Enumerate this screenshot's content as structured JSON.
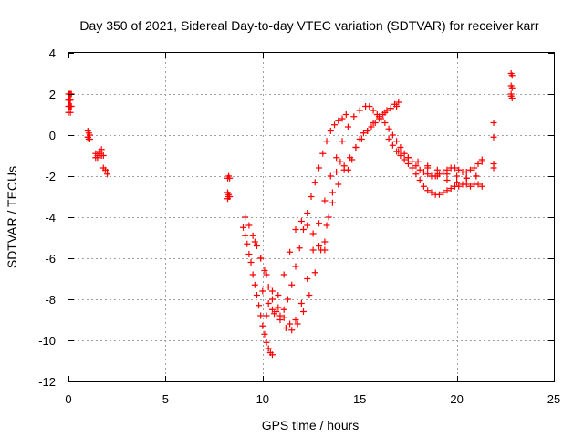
{
  "chart_data": {
    "type": "scatter",
    "title": "Day 350 of 2021, Sidereal Day-to-day VTEC variation (SDTVAR) for receiver karr",
    "xlabel": "GPS time / hours",
    "ylabel": "SDTVAR / TECUs",
    "xlim": [
      0,
      25
    ],
    "ylim": [
      -12,
      4
    ],
    "xticks": [
      0,
      5,
      10,
      15,
      20,
      25
    ],
    "yticks": [
      -12,
      -10,
      -8,
      -6,
      -4,
      -2,
      0,
      2,
      4
    ],
    "grid": true,
    "marker": "plus",
    "color": "#ff0000",
    "series": [
      {
        "x": [
          0.0,
          0.05,
          0.1,
          0.15,
          0.0,
          0.05,
          0.1,
          0.0,
          0.05,
          0.1,
          0.15,
          0.0,
          0.1,
          1.0,
          1.05,
          1.1,
          1.0,
          1.05,
          1.1,
          1.0,
          1.4,
          1.5,
          1.6,
          1.4,
          1.5,
          1.6,
          1.7,
          1.7,
          1.8,
          1.8,
          1.9,
          2.0,
          2.0,
          8.2,
          8.25,
          8.3,
          8.2,
          8.25,
          8.3,
          8.2,
          8.25,
          9.0,
          9.1,
          9.2,
          9.3,
          9.4,
          9.5,
          9.6,
          9.7,
          9.8,
          9.9,
          10.0,
          10.1,
          10.2,
          10.3,
          10.4,
          10.5,
          9.1,
          9.3,
          9.5,
          9.7,
          9.9,
          10.1,
          10.3,
          10.5,
          10.7,
          10.9,
          11.1,
          11.3,
          11.5,
          11.7,
          11.9,
          12.1,
          12.3,
          12.5,
          12.7,
          12.9,
          13.1,
          13.3,
          13.5,
          13.7,
          13.9,
          14.1,
          14.3,
          9.6,
          9.9,
          10.2,
          10.5,
          10.8,
          11.1,
          11.4,
          11.7,
          12.0,
          12.3,
          12.6,
          12.9,
          13.2,
          13.5,
          13.8,
          14.1,
          14.4,
          14.7,
          15.0,
          15.3,
          10.0,
          10.3,
          10.6,
          10.9,
          11.2,
          11.5,
          11.8,
          12.1,
          12.4,
          12.7,
          13.0,
          13.3,
          13.6,
          13.9,
          14.2,
          14.5,
          14.8,
          15.1,
          15.4,
          15.7,
          16.0,
          16.3,
          16.6,
          16.9,
          10.2,
          10.5,
          10.8,
          11.1,
          11.4,
          11.7,
          12.0,
          12.3,
          12.6,
          12.9,
          13.2,
          13.2,
          13.4,
          13.6,
          13.8,
          14.0,
          14.2,
          14.4,
          14.6,
          14.8,
          15.0,
          15.2,
          15.4,
          15.6,
          15.8,
          16.0,
          16.2,
          16.4,
          16.6,
          16.8,
          17.0,
          15.5,
          15.7,
          15.9,
          16.1,
          16.3,
          16.5,
          16.7,
          16.9,
          17.1,
          17.3,
          17.5,
          17.7,
          17.9,
          18.1,
          18.3,
          18.5,
          18.7,
          18.9,
          19.1,
          19.3,
          19.5,
          19.7,
          19.9,
          20.1,
          20.3,
          20.5,
          20.7,
          20.9,
          21.1,
          21.3,
          16.5,
          16.7,
          16.9,
          17.1,
          17.3,
          17.5,
          17.7,
          17.9,
          18.1,
          18.3,
          18.5,
          18.7,
          18.9,
          19.1,
          19.3,
          19.5,
          19.7,
          19.9,
          20.1,
          20.3,
          20.5,
          20.7,
          20.9,
          21.1,
          21.3,
          17.0,
          17.5,
          18.0,
          18.5,
          19.0,
          19.5,
          20.0,
          20.5,
          21.0,
          18.5,
          19.0,
          19.5,
          20.0,
          20.5,
          21.0,
          21.3,
          21.9,
          21.9,
          21.9,
          21.9,
          22.8,
          22.85,
          22.8,
          22.85,
          22.8,
          22.85,
          22.8
        ],
        "y": [
          2.0,
          2.0,
          2.0,
          2.0,
          1.7,
          1.7,
          1.7,
          1.4,
          1.4,
          1.4,
          1.4,
          1.1,
          1.1,
          0.2,
          0.1,
          0.0,
          -0.1,
          -0.2,
          -0.2,
          -0.1,
          -0.9,
          -1.0,
          -0.8,
          -1.1,
          -1.1,
          -0.9,
          -1.0,
          -0.7,
          -1.0,
          -1.6,
          -1.7,
          -1.8,
          -1.9,
          -2.1,
          -2.0,
          -2.1,
          -2.8,
          -2.9,
          -3.0,
          -3.1,
          -3.0,
          -4.5,
          -4.9,
          -5.3,
          -5.8,
          -6.2,
          -6.8,
          -7.3,
          -7.8,
          -8.3,
          -8.8,
          -9.3,
          -9.7,
          -10.1,
          -10.4,
          -10.6,
          -10.7,
          -4.0,
          -4.4,
          -4.9,
          -5.4,
          -6.0,
          -6.6,
          -7.4,
          -8.0,
          -8.6,
          -8.8,
          -8.5,
          -8.0,
          -7.3,
          -6.4,
          -5.5,
          -4.6,
          -3.8,
          -3.0,
          -2.3,
          -1.6,
          -0.9,
          -0.3,
          0.2,
          0.5,
          0.7,
          0.8,
          1.0,
          -5.2,
          -6.0,
          -6.8,
          -7.6,
          -8.4,
          -8.9,
          -9.2,
          -9.0,
          -8.2,
          -7.0,
          -5.6,
          -4.3,
          -3.2,
          -2.0,
          -1.1,
          -0.3,
          0.4,
          0.9,
          1.2,
          1.4,
          -7.6,
          -8.2,
          -8.7,
          -9.0,
          -9.4,
          -9.5,
          -9.2,
          -8.6,
          -7.8,
          -6.7,
          -5.6,
          -4.4,
          -3.3,
          -2.4,
          -1.7,
          -1.1,
          -0.6,
          -0.2,
          0.2,
          0.6,
          0.9,
          1.1,
          1.3,
          1.4,
          -8.8,
          -8.5,
          -7.8,
          -6.8,
          -5.7,
          -4.6,
          -4.2,
          -4.4,
          -4.8,
          -5.4,
          -5.6,
          -5.2,
          -4.0,
          -2.8,
          -1.8,
          -1.3,
          -1.5,
          -1.7,
          -1.2,
          -0.6,
          -0.2,
          0.1,
          0.2,
          0.4,
          0.6,
          0.8,
          1.0,
          1.2,
          1.3,
          1.5,
          1.6,
          1.4,
          1.2,
          1.0,
          0.8,
          0.6,
          0.3,
          0.0,
          -0.3,
          -0.6,
          -0.9,
          -1.1,
          -1.3,
          -1.5,
          -1.7,
          -1.8,
          -1.9,
          -2.0,
          -2.0,
          -1.9,
          -1.8,
          -1.7,
          -1.6,
          -1.6,
          -1.7,
          -1.8,
          -1.8,
          -1.7,
          -1.6,
          -1.4,
          -1.2,
          -0.2,
          -0.5,
          -0.8,
          -1.0,
          -1.2,
          -1.4,
          -1.6,
          -1.9,
          -2.2,
          -2.5,
          -2.7,
          -2.8,
          -2.9,
          -2.9,
          -2.8,
          -2.7,
          -2.6,
          -2.5,
          -2.5,
          -2.4,
          -2.4,
          -2.5,
          -2.4,
          -2.4,
          -2.5,
          -0.8,
          -1.1,
          -1.3,
          -1.6,
          -2.0,
          -2.2,
          -2.3,
          -2.1,
          -2.0,
          -1.5,
          -1.7,
          -1.9,
          -2.0,
          -2.1,
          -2.0,
          -1.3,
          0.6,
          -0.1,
          -1.4,
          -1.6,
          3.0,
          2.9,
          2.4,
          2.3,
          1.9,
          1.8,
          2.0
        ]
      }
    ]
  }
}
